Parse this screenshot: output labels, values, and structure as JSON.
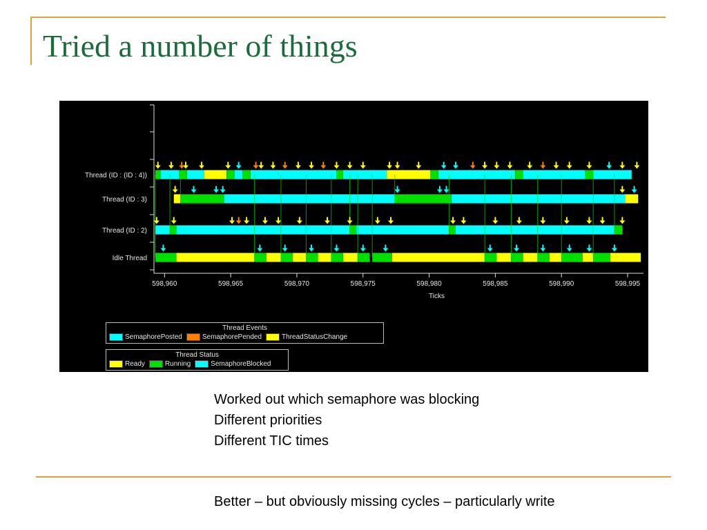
{
  "slide": {
    "title": "Tried a number of things",
    "bullets": [
      "Worked out which semaphore was blocking",
      "Different priorities",
      "Different TIC times"
    ],
    "footer_note": "Better – but obviously missing cycles – particularly write"
  },
  "chart_data": {
    "type": "timeline",
    "xlabel": "Ticks",
    "x_ticks": [
      "598,960",
      "598,965",
      "598,970",
      "598,975",
      "598,980",
      "598,985",
      "598,990",
      "598,995"
    ],
    "x_range": [
      598959.2,
      598996.2
    ],
    "rows": [
      "Thread (ID : (ID : 4))",
      "Thread (ID : 3)",
      "Thread (ID : 2)",
      "Idle Thread"
    ],
    "colors": {
      "ready": "#ffff00",
      "running": "#00e000",
      "semaphore_blocked": "#00ffff",
      "semaphore_posted": "#00ffff",
      "semaphore_pended": "#ff8000",
      "thread_status_change": "#ffff00",
      "transition": "#00e000",
      "axis": "#e0e0e0"
    },
    "legends": {
      "events": {
        "title": "Thread Events",
        "items": [
          {
            "label": "SemaphorePosted",
            "color": "#00ffff"
          },
          {
            "label": "SemaphorePended",
            "color": "#ff8000"
          },
          {
            "label": "ThreadStatusChange",
            "color": "#ffff00"
          }
        ]
      },
      "status": {
        "title": "Thread Status",
        "items": [
          {
            "label": "Ready",
            "color": "#ffff00"
          },
          {
            "label": "Running",
            "color": "#00e000"
          },
          {
            "label": "SemaphoreBlocked",
            "color": "#00ffff"
          }
        ]
      }
    },
    "segments": [
      {
        "row": 0,
        "state": "running",
        "start": 598959.3,
        "end": 598959.7
      },
      {
        "row": 0,
        "state": "semaphore_blocked",
        "start": 598959.7,
        "end": 598961.1
      },
      {
        "row": 0,
        "state": "running",
        "start": 598961.1,
        "end": 598961.7
      },
      {
        "row": 0,
        "state": "semaphore_blocked",
        "start": 598961.7,
        "end": 598963.0
      },
      {
        "row": 0,
        "state": "ready",
        "start": 598963.0,
        "end": 598964.7
      },
      {
        "row": 0,
        "state": "running",
        "start": 598964.7,
        "end": 598965.3
      },
      {
        "row": 0,
        "state": "semaphore_blocked",
        "start": 598965.3,
        "end": 598965.9
      },
      {
        "row": 0,
        "state": "running",
        "start": 598965.9,
        "end": 598966.5
      },
      {
        "row": 0,
        "state": "semaphore_blocked",
        "start": 598966.5,
        "end": 598973.0
      },
      {
        "row": 0,
        "state": "running",
        "start": 598973.0,
        "end": 598973.5
      },
      {
        "row": 0,
        "state": "semaphore_blocked",
        "start": 598973.5,
        "end": 598976.8
      },
      {
        "row": 0,
        "state": "ready",
        "start": 598976.8,
        "end": 598980.1
      },
      {
        "row": 0,
        "state": "running",
        "start": 598980.1,
        "end": 598980.7
      },
      {
        "row": 0,
        "state": "semaphore_blocked",
        "start": 598980.7,
        "end": 598986.5
      },
      {
        "row": 0,
        "state": "running",
        "start": 598986.5,
        "end": 598987.1
      },
      {
        "row": 0,
        "state": "semaphore_blocked",
        "start": 598987.1,
        "end": 598991.8
      },
      {
        "row": 0,
        "state": "running",
        "start": 598991.8,
        "end": 598992.4
      },
      {
        "row": 0,
        "state": "semaphore_blocked",
        "start": 598992.4,
        "end": 598995.3
      },
      {
        "row": 1,
        "state": "ready",
        "start": 598960.7,
        "end": 598961.2
      },
      {
        "row": 1,
        "state": "running",
        "start": 598961.2,
        "end": 598964.5
      },
      {
        "row": 1,
        "state": "semaphore_blocked",
        "start": 598964.5,
        "end": 598977.4
      },
      {
        "row": 1,
        "state": "running",
        "start": 598977.4,
        "end": 598981.7
      },
      {
        "row": 1,
        "state": "semaphore_blocked",
        "start": 598981.7,
        "end": 598994.8
      },
      {
        "row": 1,
        "state": "ready",
        "start": 598994.8,
        "end": 598995.8
      },
      {
        "row": 2,
        "state": "semaphore_blocked",
        "start": 598959.3,
        "end": 598960.4
      },
      {
        "row": 2,
        "state": "running",
        "start": 598960.4,
        "end": 598960.9
      },
      {
        "row": 2,
        "state": "semaphore_blocked",
        "start": 598960.9,
        "end": 598974.0
      },
      {
        "row": 2,
        "state": "running",
        "start": 598974.0,
        "end": 598974.5
      },
      {
        "row": 2,
        "state": "semaphore_blocked",
        "start": 598974.5,
        "end": 598981.5
      },
      {
        "row": 2,
        "state": "running",
        "start": 598981.5,
        "end": 598982.0
      },
      {
        "row": 2,
        "state": "semaphore_blocked",
        "start": 598982.0,
        "end": 598994.0
      },
      {
        "row": 2,
        "state": "running",
        "start": 598994.0,
        "end": 598994.6
      },
      {
        "row": 3,
        "state": "running",
        "start": 598959.3,
        "end": 598960.9
      },
      {
        "row": 3,
        "state": "ready",
        "start": 598960.9,
        "end": 598966.8
      },
      {
        "row": 3,
        "state": "running",
        "start": 598966.8,
        "end": 598967.7
      },
      {
        "row": 3,
        "state": "ready",
        "start": 598967.7,
        "end": 598968.8
      },
      {
        "row": 3,
        "state": "running",
        "start": 598968.8,
        "end": 598969.7
      },
      {
        "row": 3,
        "state": "ready",
        "start": 598969.7,
        "end": 598970.7
      },
      {
        "row": 3,
        "state": "running",
        "start": 598970.7,
        "end": 598971.6
      },
      {
        "row": 3,
        "state": "ready",
        "start": 598971.6,
        "end": 598972.6
      },
      {
        "row": 3,
        "state": "running",
        "start": 598972.6,
        "end": 598973.5
      },
      {
        "row": 3,
        "state": "ready",
        "start": 598973.5,
        "end": 598974.6
      },
      {
        "row": 3,
        "state": "running",
        "start": 598974.6,
        "end": 598975.5
      },
      {
        "row": 3,
        "state": "running",
        "start": 598975.7,
        "end": 598977.2
      },
      {
        "row": 3,
        "state": "ready",
        "start": 598977.2,
        "end": 598984.2
      },
      {
        "row": 3,
        "state": "running",
        "start": 598984.2,
        "end": 598985.1
      },
      {
        "row": 3,
        "state": "ready",
        "start": 598985.1,
        "end": 598986.2
      },
      {
        "row": 3,
        "state": "running",
        "start": 598986.2,
        "end": 598987.1
      },
      {
        "row": 3,
        "state": "ready",
        "start": 598987.1,
        "end": 598988.2
      },
      {
        "row": 3,
        "state": "running",
        "start": 598988.2,
        "end": 598989.1
      },
      {
        "row": 3,
        "state": "ready",
        "start": 598989.1,
        "end": 598990.0
      },
      {
        "row": 3,
        "state": "running",
        "start": 598990.0,
        "end": 598991.6
      },
      {
        "row": 3,
        "state": "ready",
        "start": 598991.6,
        "end": 598992.4
      },
      {
        "row": 3,
        "state": "running",
        "start": 598992.4,
        "end": 598993.7
      },
      {
        "row": 3,
        "state": "ready",
        "start": 598993.7,
        "end": 598996.0
      }
    ],
    "events": [
      {
        "row": 0,
        "kind": "thread_status_change",
        "x": 598959.5
      },
      {
        "row": 0,
        "kind": "thread_status_change",
        "x": 598960.5
      },
      {
        "row": 0,
        "kind": "semaphore_pended",
        "x": 598961.3
      },
      {
        "row": 0,
        "kind": "thread_status_change",
        "x": 598961.6
      },
      {
        "row": 0,
        "kind": "thread_status_change",
        "x": 598962.8
      },
      {
        "row": 0,
        "kind": "thread_status_change",
        "x": 598964.8
      },
      {
        "row": 0,
        "kind": "semaphore_posted",
        "x": 598965.6
      },
      {
        "row": 0,
        "kind": "semaphore_pended",
        "x": 598966.9
      },
      {
        "row": 0,
        "kind": "thread_status_change",
        "x": 598967.3
      },
      {
        "row": 0,
        "kind": "thread_status_change",
        "x": 598968.2
      },
      {
        "row": 0,
        "kind": "semaphore_pended",
        "x": 598969.1
      },
      {
        "row": 0,
        "kind": "thread_status_change",
        "x": 598970.1
      },
      {
        "row": 0,
        "kind": "thread_status_change",
        "x": 598971.1
      },
      {
        "row": 0,
        "kind": "semaphore_pended",
        "x": 598972.0
      },
      {
        "row": 0,
        "kind": "thread_status_change",
        "x": 598973.0
      },
      {
        "row": 0,
        "kind": "thread_status_change",
        "x": 598974.0
      },
      {
        "row": 0,
        "kind": "thread_status_change",
        "x": 598975.0
      },
      {
        "row": 0,
        "kind": "thread_status_change",
        "x": 598977.0
      },
      {
        "row": 0,
        "kind": "thread_status_change",
        "x": 598977.6
      },
      {
        "row": 0,
        "kind": "thread_status_change",
        "x": 598979.2
      },
      {
        "row": 0,
        "kind": "semaphore_posted",
        "x": 598981.1
      },
      {
        "row": 0,
        "kind": "semaphore_posted",
        "x": 598982.0
      },
      {
        "row": 0,
        "kind": "semaphore_pended",
        "x": 598983.3
      },
      {
        "row": 0,
        "kind": "thread_status_change",
        "x": 598984.2
      },
      {
        "row": 0,
        "kind": "thread_status_change",
        "x": 598985.1
      },
      {
        "row": 0,
        "kind": "thread_status_change",
        "x": 598986.1
      },
      {
        "row": 0,
        "kind": "thread_status_change",
        "x": 598987.6
      },
      {
        "row": 0,
        "kind": "semaphore_pended",
        "x": 598988.6
      },
      {
        "row": 0,
        "kind": "thread_status_change",
        "x": 598989.6
      },
      {
        "row": 0,
        "kind": "thread_status_change",
        "x": 598990.6
      },
      {
        "row": 0,
        "kind": "thread_status_change",
        "x": 598992.1
      },
      {
        "row": 0,
        "kind": "semaphore_posted",
        "x": 598993.6
      },
      {
        "row": 0,
        "kind": "thread_status_change",
        "x": 598994.6
      },
      {
        "row": 0,
        "kind": "thread_status_change",
        "x": 598995.7
      },
      {
        "row": 1,
        "kind": "thread_status_change",
        "x": 598960.8
      },
      {
        "row": 1,
        "kind": "semaphore_posted",
        "x": 598962.2
      },
      {
        "row": 1,
        "kind": "semaphore_posted",
        "x": 598963.9
      },
      {
        "row": 1,
        "kind": "semaphore_posted",
        "x": 598964.4
      },
      {
        "row": 1,
        "kind": "semaphore_posted",
        "x": 598977.6
      },
      {
        "row": 1,
        "kind": "semaphore_posted",
        "x": 598980.8
      },
      {
        "row": 1,
        "kind": "semaphore_posted",
        "x": 598981.3
      },
      {
        "row": 1,
        "kind": "thread_status_change",
        "x": 598994.6
      },
      {
        "row": 1,
        "kind": "semaphore_posted",
        "x": 598995.5
      },
      {
        "row": 2,
        "kind": "thread_status_change",
        "x": 598959.4
      },
      {
        "row": 2,
        "kind": "thread_status_change",
        "x": 598960.7
      },
      {
        "row": 2,
        "kind": "thread_status_change",
        "x": 598965.1
      },
      {
        "row": 2,
        "kind": "semaphore_pended",
        "x": 598965.6
      },
      {
        "row": 2,
        "kind": "thread_status_change",
        "x": 598966.2
      },
      {
        "row": 2,
        "kind": "thread_status_change",
        "x": 598967.6
      },
      {
        "row": 2,
        "kind": "thread_status_change",
        "x": 598968.6
      },
      {
        "row": 2,
        "kind": "thread_status_change",
        "x": 598970.2
      },
      {
        "row": 2,
        "kind": "thread_status_change",
        "x": 598972.3
      },
      {
        "row": 2,
        "kind": "thread_status_change",
        "x": 598974.0
      },
      {
        "row": 2,
        "kind": "thread_status_change",
        "x": 598976.1
      },
      {
        "row": 2,
        "kind": "thread_status_change",
        "x": 598977.1
      },
      {
        "row": 2,
        "kind": "thread_status_change",
        "x": 598981.8
      },
      {
        "row": 2,
        "kind": "thread_status_change",
        "x": 598982.6
      },
      {
        "row": 2,
        "kind": "thread_status_change",
        "x": 598985.0
      },
      {
        "row": 2,
        "kind": "thread_status_change",
        "x": 598986.8
      },
      {
        "row": 2,
        "kind": "thread_status_change",
        "x": 598988.6
      },
      {
        "row": 2,
        "kind": "thread_status_change",
        "x": 598990.4
      },
      {
        "row": 2,
        "kind": "thread_status_change",
        "x": 598992.1
      },
      {
        "row": 2,
        "kind": "thread_status_change",
        "x": 598993.1
      },
      {
        "row": 2,
        "kind": "thread_status_change",
        "x": 598994.6
      },
      {
        "row": 3,
        "kind": "semaphore_posted",
        "x": 598959.9
      },
      {
        "row": 3,
        "kind": "semaphore_posted",
        "x": 598967.2
      },
      {
        "row": 3,
        "kind": "semaphore_posted",
        "x": 598969.1
      },
      {
        "row": 3,
        "kind": "semaphore_posted",
        "x": 598971.1
      },
      {
        "row": 3,
        "kind": "semaphore_posted",
        "x": 598973.0
      },
      {
        "row": 3,
        "kind": "semaphore_posted",
        "x": 598975.0
      },
      {
        "row": 3,
        "kind": "semaphore_posted",
        "x": 598976.7
      },
      {
        "row": 3,
        "kind": "semaphore_posted",
        "x": 598984.6
      },
      {
        "row": 3,
        "kind": "semaphore_posted",
        "x": 598986.6
      },
      {
        "row": 3,
        "kind": "semaphore_posted",
        "x": 598988.6
      },
      {
        "row": 3,
        "kind": "semaphore_posted",
        "x": 598990.6
      },
      {
        "row": 3,
        "kind": "semaphore_posted",
        "x": 598992.1
      },
      {
        "row": 3,
        "kind": "semaphore_posted",
        "x": 598994.0
      }
    ]
  }
}
